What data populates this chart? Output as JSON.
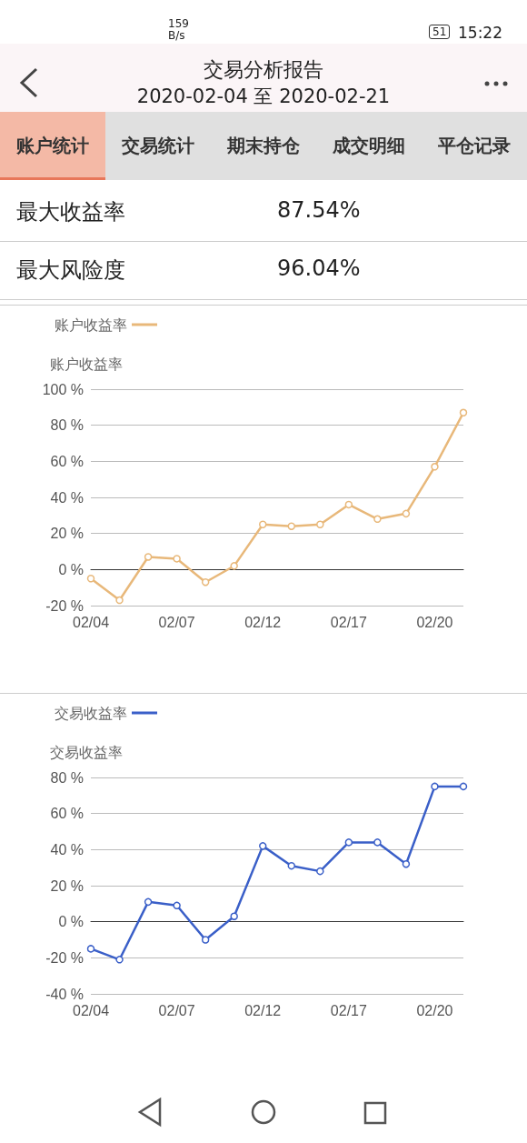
{
  "chart_data": [
    {
      "type": "other",
      "title": "交易分析报告",
      "subtitle": "2020-02-04 至 2020-02-21",
      "annotations": [
        "159 B/s",
        "51",
        "15:22",
        "账户统计",
        "交易统计",
        "期末持仓",
        "成交明细",
        "平仓记录",
        "最大收益率",
        "87.54%",
        "最大风险度",
        "96.04%"
      ]
    },
    {
      "type": "line",
      "ylabel": "账户收益率",
      "legend": "top left",
      "grid": "y",
      "marker": "circle",
      "line_style": "solid",
      "categories": [
        "02/04",
        null,
        null,
        "02/07",
        null,
        null,
        "02/12",
        null,
        null,
        "02/17",
        null,
        null,
        "02/20",
        null
      ],
      "series": [
        {
          "name": "账户收益率",
          "color": "#e8b87a",
          "values": [
            -5,
            -17,
            7,
            6,
            -7,
            2,
            25,
            24,
            25,
            36,
            28,
            31,
            57,
            87
          ]
        }
      ],
      "ylim": [
        -20,
        100
      ],
      "yticks": [
        {
          "value": -20,
          "label": "-20 %"
        },
        {
          "value": 0,
          "label": "0 %"
        },
        {
          "value": 20,
          "label": "20 %"
        },
        {
          "value": 40,
          "label": "40 %"
        },
        {
          "value": 60,
          "label": "60 %"
        },
        {
          "value": 80,
          "label": "80 %"
        },
        {
          "value": 100,
          "label": "100 %"
        }
      ]
    },
    {
      "type": "line",
      "ylabel": "交易收益率",
      "legend": "top left",
      "grid": "y",
      "marker": "circle",
      "line_style": "solid",
      "categories": [
        "02/04",
        null,
        null,
        "02/07",
        null,
        null,
        "02/12",
        null,
        null,
        "02/17",
        null,
        null,
        "02/20",
        null
      ],
      "series": [
        {
          "name": "交易收益率",
          "color": "#3a5fc8",
          "values": [
            -15,
            -21,
            11,
            9,
            -10,
            3,
            42,
            31,
            28,
            44,
            44,
            32,
            75,
            75
          ]
        }
      ],
      "ylim": [
        -40,
        80
      ],
      "yticks": [
        {
          "value": -40,
          "label": "-40 %"
        },
        {
          "value": -20,
          "label": "-20 %"
        },
        {
          "value": 0,
          "label": "0 %"
        },
        {
          "value": 20,
          "label": "20 %"
        },
        {
          "value": 40,
          "label": "40 %"
        },
        {
          "value": 60,
          "label": "60 %"
        },
        {
          "value": 80,
          "label": "80 %"
        }
      ]
    }
  ]
}
